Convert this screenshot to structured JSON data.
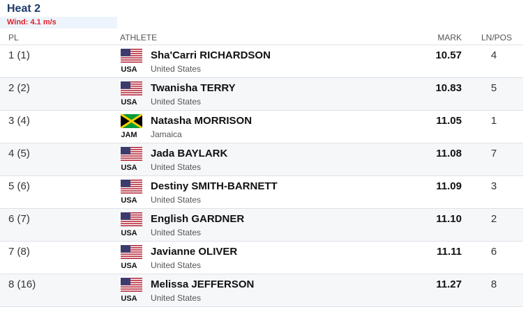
{
  "header": {
    "title": "Heat 2",
    "wind": "Wind: 4.1 m/s"
  },
  "table": {
    "columns": [
      "PL",
      "ATHLETE",
      "MARK",
      "LN/POS"
    ],
    "rows": [
      {
        "place": "1 (1)",
        "name": "Sha'Carri RICHARDSON",
        "country": "United States",
        "code": "USA",
        "mark": "10.57",
        "lane": 4
      },
      {
        "place": "2 (2)",
        "name": "Twanisha TERRY",
        "country": "United States",
        "code": "USA",
        "mark": "10.83",
        "lane": 5
      },
      {
        "place": "3 (4)",
        "name": "Natasha MORRISON",
        "country": "Jamaica",
        "code": "JAM",
        "mark": "11.05",
        "lane": 1
      },
      {
        "place": "4 (5)",
        "name": "Jada BAYLARK",
        "country": "United States",
        "code": "USA",
        "mark": "11.08",
        "lane": 7
      },
      {
        "place": "5 (6)",
        "name": "Destiny SMITH-BARNETT",
        "country": "United States",
        "code": "USA",
        "mark": "11.09",
        "lane": 3
      },
      {
        "place": "6 (7)",
        "name": "English GARDNER",
        "country": "United States",
        "code": "USA",
        "mark": "11.10",
        "lane": 2
      },
      {
        "place": "7 (8)",
        "name": "Javianne OLIVER",
        "country": "United States",
        "code": "USA",
        "mark": "11.11",
        "lane": 6
      },
      {
        "place": "8 (16)",
        "name": "Melissa JEFFERSON",
        "country": "United States",
        "code": "USA",
        "mark": "11.27",
        "lane": 8
      }
    ]
  }
}
